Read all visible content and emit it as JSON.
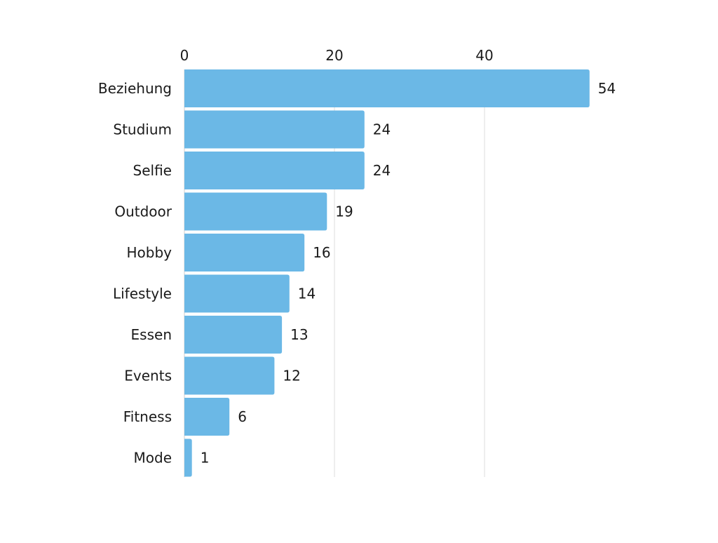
{
  "chart_data": {
    "type": "bar",
    "orientation": "horizontal",
    "title": "",
    "xlabel": "",
    "ylabel": "",
    "categories": [
      "Beziehung",
      "Studium",
      "Selfie",
      "Outdoor",
      "Hobby",
      "Lifestyle",
      "Essen",
      "Events",
      "Fitness",
      "Mode"
    ],
    "values": [
      54,
      24,
      24,
      19,
      16,
      14,
      13,
      12,
      6,
      1
    ],
    "xlim": [
      0,
      54
    ],
    "x_ticks": [
      0,
      20,
      40
    ],
    "x_tick_labels": [
      "0",
      "20",
      "40"
    ],
    "x_axis_position": "top",
    "grid": true,
    "data_labels": true,
    "bar_color": "#6bb8e6",
    "grid_color": "#e2e2e2"
  }
}
